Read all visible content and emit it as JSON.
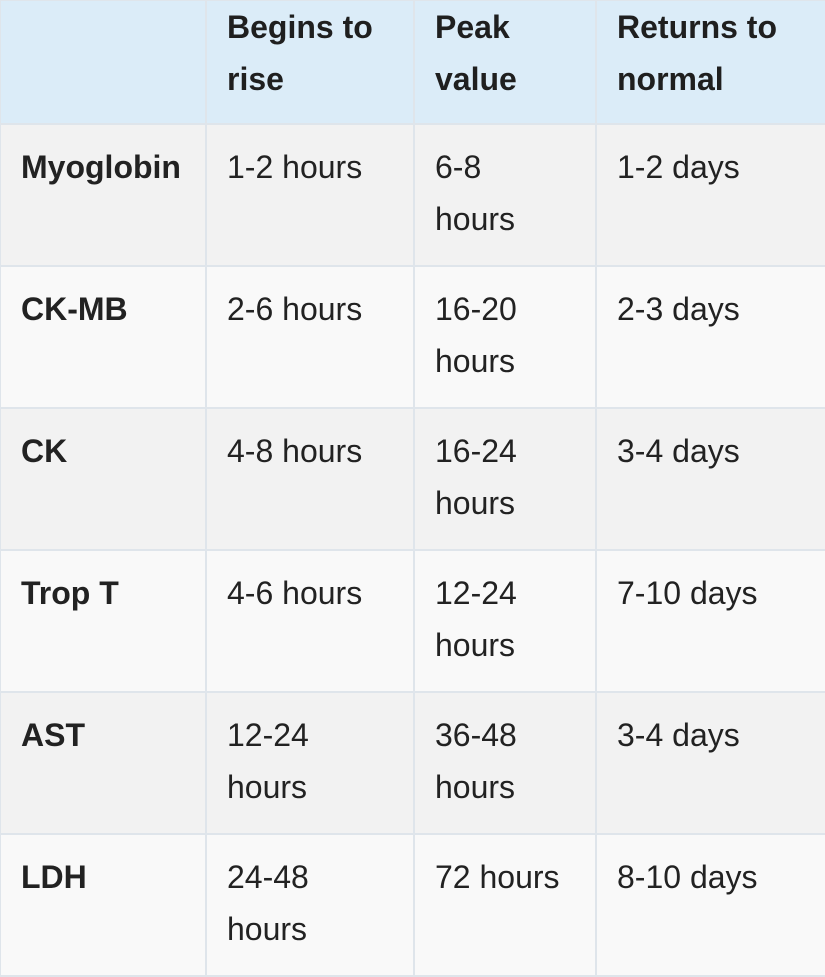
{
  "table": {
    "header": [
      "Begins to rise",
      "Peak value",
      "Returns to normal"
    ],
    "rows": [
      [
        "Myoglobin",
        "1-2 hours",
        "6-8 hours",
        "1-2 days"
      ],
      [
        "CK-MB",
        "2-6 hours",
        "16-20 hours",
        "2-3 days"
      ],
      [
        "CK",
        "4-8 hours",
        "16-24 hours",
        "3-4 days"
      ],
      [
        "Trop T",
        "4-6 hours",
        "12-24 hours",
        "7-10 days"
      ],
      [
        "AST",
        "12-24 hours",
        "36-48 hours",
        "3-4 days"
      ],
      [
        "LDH",
        "24-48 hours",
        "72 hours",
        "8-10 days"
      ]
    ]
  }
}
